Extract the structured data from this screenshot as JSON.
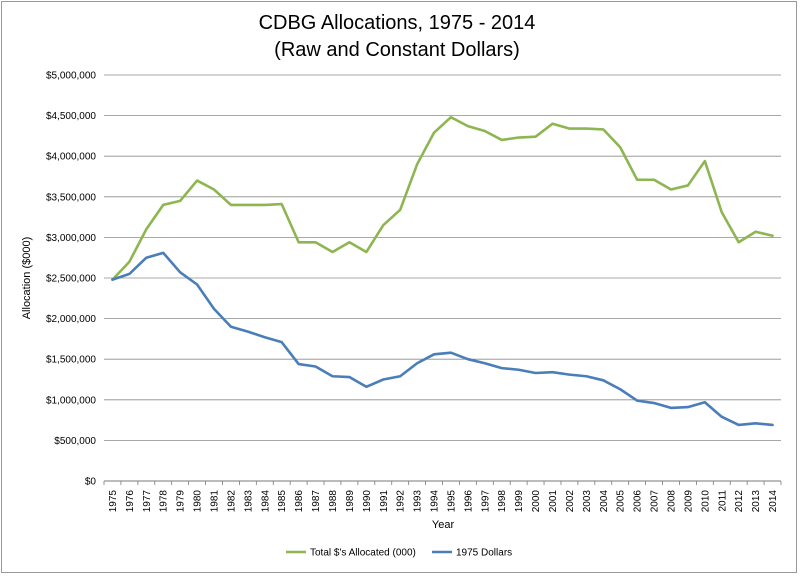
{
  "chart_data": {
    "type": "line",
    "title": "CDBG Allocations, 1975 - 2014",
    "subtitle": "(Raw and Constant Dollars)",
    "xlabel": "Year",
    "ylabel": "Allocation ($000)",
    "ylim": [
      0,
      5000000
    ],
    "yticks": [
      0,
      500000,
      1000000,
      1500000,
      2000000,
      2500000,
      3000000,
      3500000,
      4000000,
      4500000,
      5000000
    ],
    "ytick_labels": [
      "$0",
      "$500,000",
      "$1,000,000",
      "$1,500,000",
      "$2,000,000",
      "$2,500,000",
      "$3,000,000",
      "$3,500,000",
      "$4,000,000",
      "$4,500,000",
      "$5,000,000"
    ],
    "categories": [
      "1975",
      "1976",
      "1977",
      "1978",
      "1979",
      "1980",
      "1981",
      "1982",
      "1983",
      "1984",
      "1985",
      "1986",
      "1987",
      "1988",
      "1989",
      "1990",
      "1991",
      "1992",
      "1993",
      "1994",
      "1995",
      "1996",
      "1997",
      "1998",
      "1999",
      "2000",
      "2001",
      "2002",
      "2003",
      "2004",
      "2005",
      "2006",
      "2007",
      "2008",
      "2009",
      "2010",
      "2011",
      "2012",
      "2013",
      "2014"
    ],
    "grid": true,
    "legend_position": "bottom",
    "series": [
      {
        "name": "Total $'s Allocated (000)",
        "color": "#8db650",
        "values": [
          2480000,
          2700000,
          3100000,
          3400000,
          3450000,
          3700000,
          3590000,
          3400000,
          3400000,
          3400000,
          3410000,
          2940000,
          2940000,
          2820000,
          2940000,
          2820000,
          3150000,
          3340000,
          3900000,
          4290000,
          4480000,
          4370000,
          4310000,
          4200000,
          4230000,
          4240000,
          4400000,
          4340000,
          4340000,
          4330000,
          4110000,
          3710000,
          3710000,
          3590000,
          3640000,
          3940000,
          3310000,
          2940000,
          3070000,
          3020000
        ]
      },
      {
        "name": "1975 Dollars",
        "color": "#4a7eb8",
        "values": [
          2480000,
          2550000,
          2750000,
          2810000,
          2570000,
          2420000,
          2120000,
          1900000,
          1840000,
          1770000,
          1710000,
          1440000,
          1410000,
          1290000,
          1280000,
          1160000,
          1250000,
          1290000,
          1450000,
          1560000,
          1580000,
          1500000,
          1450000,
          1390000,
          1370000,
          1330000,
          1340000,
          1310000,
          1290000,
          1240000,
          1130000,
          990000,
          960000,
          900000,
          910000,
          970000,
          790000,
          690000,
          710000,
          690000
        ]
      }
    ]
  }
}
